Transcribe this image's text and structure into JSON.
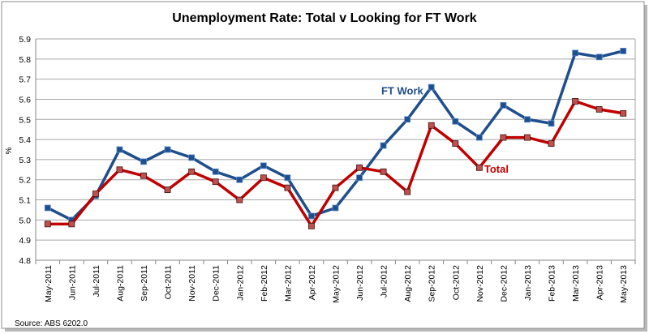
{
  "chart_data": {
    "type": "line",
    "title": "Unemployment Rate: Total v Looking for FT Work",
    "xlabel": "",
    "ylabel": "%",
    "ylim": [
      4.8,
      5.9
    ],
    "yticks": [
      "4.8",
      "4.9",
      "5.0",
      "5.1",
      "5.2",
      "5.3",
      "5.4",
      "5.5",
      "5.6",
      "5.7",
      "5.8",
      "5.9"
    ],
    "grid": true,
    "legend": "inline labels",
    "source": "Source: ABS 6202.0",
    "categories": [
      "May-2011",
      "Jun-2011",
      "Jul-2011",
      "Aug-2011",
      "Sep-2011",
      "Oct-2011",
      "Nov-2011",
      "Dec-2011",
      "Jan-2012",
      "Feb-2012",
      "Mar-2012",
      "Apr-2012",
      "May-2012",
      "Jun-2012",
      "Jul-2012",
      "Aug-2012",
      "Sep-2012",
      "Oct-2012",
      "Nov-2012",
      "Dec-2012",
      "Jan-2013",
      "Feb-2013",
      "Mar-2013",
      "Apr-2013",
      "May-2013"
    ],
    "series": [
      {
        "name": "FT Work",
        "color": "#1F4E8C",
        "marker_color": "#1F4E8C",
        "values": [
          5.06,
          5.0,
          5.12,
          5.35,
          5.29,
          5.35,
          5.31,
          5.24,
          5.2,
          5.27,
          5.21,
          5.02,
          5.06,
          5.21,
          5.37,
          5.5,
          5.66,
          5.49,
          5.41,
          5.57,
          5.5,
          5.48,
          5.83,
          5.81,
          5.84
        ],
        "label_at": 16
      },
      {
        "name": "Total",
        "color": "#C00000",
        "marker_color": "#C0504D",
        "values": [
          4.98,
          4.98,
          5.13,
          5.25,
          5.22,
          5.15,
          5.24,
          5.19,
          5.1,
          5.21,
          5.16,
          4.97,
          5.16,
          5.26,
          5.24,
          5.14,
          5.47,
          5.38,
          5.26,
          5.41,
          5.41,
          5.38,
          5.59,
          5.55,
          5.53
        ],
        "label_at": 18
      }
    ]
  }
}
